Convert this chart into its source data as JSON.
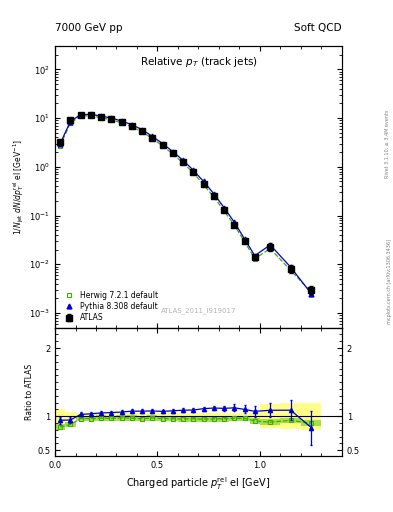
{
  "title_left": "7000 GeV pp",
  "title_right": "Soft QCD",
  "plot_title": "Relative $p_T$ (track jets)",
  "xlabel": "Charged particle $p_T^{rel}$ el [GeV]",
  "ylabel_main": "$1/N_{jet}$ $dN/dp_T^{rel}$ el [GeV$^{-1}$]",
  "ylabel_ratio": "Ratio to ATLAS",
  "watermark": "ATLAS_2011_I919017",
  "right_label": "Rivet 3.1.10; ≥ 3.4M events",
  "right_label2": "mcplots.cern.ch [arXiv:1306.3436]",
  "xlim": [
    0.0,
    1.4
  ],
  "ylim_main": [
    0.0005,
    300
  ],
  "ylim_ratio": [
    0.42,
    2.3
  ],
  "atlas_x": [
    0.025,
    0.075,
    0.125,
    0.175,
    0.225,
    0.275,
    0.325,
    0.375,
    0.425,
    0.475,
    0.525,
    0.575,
    0.625,
    0.675,
    0.725,
    0.775,
    0.825,
    0.875,
    0.925,
    0.975,
    1.05,
    1.15,
    1.25
  ],
  "atlas_y": [
    3.2,
    9.0,
    11.5,
    11.5,
    10.5,
    9.5,
    8.2,
    6.8,
    5.4,
    3.9,
    2.8,
    1.9,
    1.25,
    0.78,
    0.45,
    0.25,
    0.13,
    0.065,
    0.03,
    0.014,
    0.023,
    0.008,
    0.003
  ],
  "atlas_yerr": [
    0.35,
    0.5,
    0.55,
    0.55,
    0.5,
    0.45,
    0.39,
    0.32,
    0.25,
    0.18,
    0.13,
    0.09,
    0.06,
    0.038,
    0.022,
    0.012,
    0.0065,
    0.0032,
    0.0015,
    0.0007,
    0.004,
    0.0015,
    0.0006
  ],
  "herwig_x": [
    0.025,
    0.075,
    0.125,
    0.175,
    0.225,
    0.275,
    0.325,
    0.375,
    0.425,
    0.475,
    0.525,
    0.575,
    0.625,
    0.675,
    0.725,
    0.775,
    0.825,
    0.875,
    0.925,
    0.975,
    1.05,
    1.15,
    1.25
  ],
  "herwig_y": [
    2.7,
    7.9,
    11.1,
    11.1,
    10.2,
    9.2,
    8.0,
    6.6,
    5.2,
    3.8,
    2.7,
    1.83,
    1.2,
    0.75,
    0.43,
    0.24,
    0.125,
    0.063,
    0.029,
    0.013,
    0.021,
    0.0075,
    0.0027
  ],
  "pythia_x": [
    0.025,
    0.075,
    0.125,
    0.175,
    0.225,
    0.275,
    0.325,
    0.375,
    0.425,
    0.475,
    0.525,
    0.575,
    0.625,
    0.675,
    0.725,
    0.775,
    0.825,
    0.875,
    0.925,
    0.975,
    1.05,
    1.15,
    1.25
  ],
  "pythia_y": [
    3.0,
    8.5,
    11.8,
    11.9,
    11.0,
    10.0,
    8.7,
    7.3,
    5.8,
    4.2,
    3.0,
    2.05,
    1.36,
    0.85,
    0.5,
    0.28,
    0.145,
    0.073,
    0.033,
    0.015,
    0.025,
    0.0087,
    0.0025
  ],
  "herwig_ratio": [
    0.84,
    0.88,
    0.965,
    0.965,
    0.971,
    0.968,
    0.976,
    0.971,
    0.963,
    0.974,
    0.964,
    0.963,
    0.96,
    0.962,
    0.956,
    0.96,
    0.962,
    0.969,
    0.967,
    0.929,
    0.913,
    0.938,
    0.9
  ],
  "pythia_ratio": [
    0.94,
    0.944,
    1.026,
    1.035,
    1.048,
    1.053,
    1.061,
    1.074,
    1.074,
    1.077,
    1.071,
    1.079,
    1.088,
    1.09,
    1.111,
    1.12,
    1.115,
    1.123,
    1.1,
    1.071,
    1.087,
    1.088,
    0.833
  ],
  "atlas_color": "black",
  "herwig_color": "#44aa00",
  "pythia_color": "#0000cc",
  "atlas_band_color": "#ffff88",
  "herwig_band_color": "#99dd44"
}
